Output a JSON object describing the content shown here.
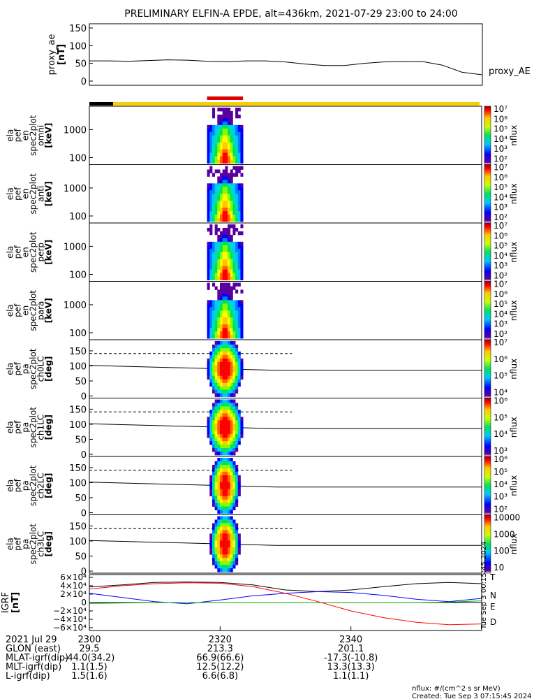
{
  "title": "PRELIMINARY ELFIN-A EPDE, alt=436km, 2021-07-29 23:00 to 24:00",
  "proxy_panel": {
    "ylabel_lines": [
      "proxy_ae",
      "[nT]"
    ],
    "yticks": [
      "150",
      "100",
      "50",
      "0"
    ],
    "ylim": [
      0,
      150
    ],
    "series_label": "proxy_AE"
  },
  "energy_panels": [
    {
      "label_lines": [
        "ela",
        "pef",
        "en",
        "spec2plot",
        "omni",
        "[keV]"
      ],
      "yticks": [
        "1000",
        "100"
      ]
    },
    {
      "label_lines": [
        "ela",
        "pef",
        "en",
        "spec2plot",
        "anti",
        "[keV]"
      ],
      "yticks": [
        "1000",
        "100"
      ]
    },
    {
      "label_lines": [
        "ela",
        "pef",
        "en",
        "spec2plot",
        "perp",
        "[keV]"
      ],
      "yticks": [
        "1000",
        "100"
      ]
    },
    {
      "label_lines": [
        "ela",
        "pef",
        "en",
        "spec2plot",
        "para",
        "[keV]"
      ],
      "yticks": [
        "1000",
        "100"
      ]
    }
  ],
  "pa_panels": [
    {
      "label_lines": [
        "ela",
        "pef",
        "pa",
        "spec2plot",
        "ch0LC",
        "[deg]"
      ],
      "yticks": [
        "150",
        "100",
        "50",
        "0"
      ]
    },
    {
      "label_lines": [
        "ela",
        "pef",
        "pa",
        "spec2plot",
        "ch1LC",
        "[deg]"
      ],
      "yticks": [
        "150",
        "100",
        "50",
        "0"
      ]
    },
    {
      "label_lines": [
        "ela",
        "pef",
        "pa",
        "spec2plot",
        "ch2LC",
        "[deg]"
      ],
      "yticks": [
        "150",
        "100",
        "50",
        "0"
      ]
    },
    {
      "label_lines": [
        "ela",
        "pef",
        "pa",
        "spec2plot",
        "ch3LC",
        "[deg]"
      ],
      "yticks": [
        "150",
        "100",
        "50",
        "0"
      ]
    }
  ],
  "colorbars": [
    {
      "labels": [
        "10⁷",
        "10⁶",
        "10⁵",
        "10⁴",
        "10³",
        "10²"
      ],
      "title": "nflux"
    },
    {
      "labels": [
        "10⁷",
        "10⁶",
        "10⁵",
        "10⁴",
        "10³",
        "10²"
      ],
      "title": "nflux"
    },
    {
      "labels": [
        "10⁷",
        "10⁶",
        "10⁵",
        "10⁴",
        "10³",
        "10²"
      ],
      "title": "nflux"
    },
    {
      "labels": [
        "10⁷",
        "10⁶",
        "10⁵",
        "10⁴",
        "10³",
        "10²"
      ],
      "title": "nflux"
    },
    {
      "labels": [
        "10⁷",
        "10⁶",
        "10⁵",
        "10⁴"
      ],
      "title": "nflux"
    },
    {
      "labels": [
        "10⁶",
        "10⁵",
        "10⁴",
        "10³"
      ],
      "title": "nflux"
    },
    {
      "labels": [
        "10⁶",
        "10⁵",
        "10⁴",
        "10³",
        "10²"
      ],
      "title": "nflux"
    },
    {
      "labels": [
        "10000",
        "1000",
        "100",
        "10"
      ],
      "title": "nflux"
    }
  ],
  "igrf_panel": {
    "ylabel_lines": [
      "IGRF",
      "[nT]"
    ],
    "yticks": [
      "6×10⁴",
      "4×10⁴",
      "2×10⁴",
      "0",
      "−2×10⁴",
      "−4×10⁴",
      "−6×10⁴"
    ],
    "legend": [
      {
        "label": "T",
        "color": "#000000"
      },
      {
        "label": "N",
        "color": "#00aa00"
      },
      {
        "label": "E",
        "color": "#0000ff"
      },
      {
        "label": "D",
        "color": "#ff0000"
      }
    ]
  },
  "xaxis": {
    "rows": [
      {
        "label": "2021 Jul 29",
        "values": [
          "2300",
          "2320",
          "2340"
        ]
      },
      {
        "label": "GLON (east)",
        "values": [
          "29.5",
          "213.3",
          "201.1"
        ]
      },
      {
        "label": "MLAT-igrf(dip)",
        "values": [
          "-44.0(34.2)",
          "66.9(66.6)",
          "-17.3(-10.8)"
        ]
      },
      {
        "label": "MLT-igrf(dip)",
        "values": [
          "1.1(1.5)",
          "12.5(12.2)",
          "13.3(13.3)"
        ]
      },
      {
        "label": "L-igrf(dip)",
        "values": [
          "1.5(1.6)",
          "6.6(6.8)",
          "1.1(1.1)"
        ]
      }
    ]
  },
  "footer": {
    "units": "nflux: #/(cm^2 s sr MeV)",
    "created": "Created: Tue Sep  3 07:15:45 2024",
    "side_stamp": "Tue Sep  3 00:15:45 2024"
  },
  "colors": {
    "science_bar": "#dd0000",
    "status_dark": "#000000",
    "status_bright": "#f5d000"
  },
  "chart_data": {
    "type": "heatmap",
    "x_range_minutes": [
      0,
      60
    ],
    "science_zone_minutes": [
      18,
      23.5
    ],
    "proxy_ae": {
      "x_minutes": [
        0,
        3,
        6,
        9,
        12,
        15,
        18,
        21,
        24,
        27,
        30,
        33,
        36,
        39,
        42,
        45,
        48,
        51,
        54,
        57,
        60
      ],
      "values": [
        57,
        57,
        56,
        58,
        60,
        59,
        56,
        55,
        57,
        57,
        54,
        48,
        44,
        44,
        50,
        54,
        55,
        55,
        45,
        25,
        18
      ]
    },
    "igrf": {
      "x_minutes": [
        0,
        5,
        10,
        15,
        20,
        25,
        30,
        35,
        40,
        45,
        50,
        55,
        60
      ],
      "T": [
        37000,
        42000,
        48000,
        49000,
        48000,
        42000,
        30000,
        26000,
        30000,
        38000,
        45000,
        48000,
        45000
      ],
      "E": [
        22000,
        12000,
        2000,
        -3000,
        6000,
        16000,
        22000,
        26000,
        24000,
        17000,
        8000,
        2000,
        10000
      ],
      "N": [
        -2000,
        -1000,
        0,
        0,
        0,
        0,
        0,
        0,
        0,
        0,
        0,
        1000,
        4000
      ],
      "D": [
        32000,
        40000,
        45000,
        47000,
        46000,
        38000,
        22000,
        2000,
        -20000,
        -36000,
        -47000,
        -53000,
        -51000
      ]
    }
  }
}
